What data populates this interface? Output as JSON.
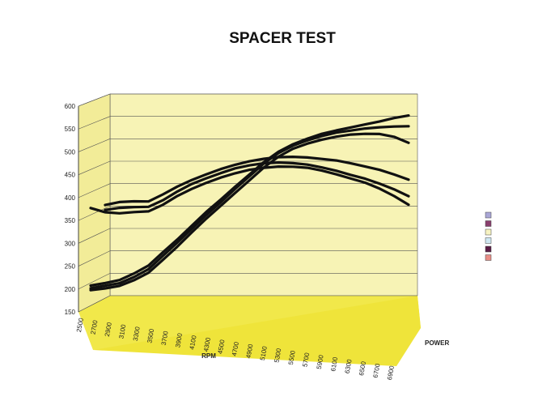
{
  "chart_data": {
    "type": "line",
    "title": "SPACER TEST",
    "xlabel": "RPM",
    "zlabel": "POWER",
    "ylim": [
      150,
      600
    ],
    "yticks": [
      "150",
      "200",
      "250",
      "300",
      "350",
      "400",
      "450",
      "500",
      "550",
      "600"
    ],
    "categories": [
      "2500",
      "2700",
      "2900",
      "3100",
      "3300",
      "3500",
      "3700",
      "3900",
      "4100",
      "4300",
      "4500",
      "4700",
      "4900",
      "5100",
      "5300",
      "5500",
      "5700",
      "5900",
      "6100",
      "6300",
      "6500",
      "6700",
      "6900"
    ],
    "grid": true,
    "legend_position": "right",
    "series": [
      {
        "color": "#111111",
        "values": [
          187,
          192,
          198,
          212,
          229,
          258,
          286,
          316,
          346,
          373,
          401,
          428,
          455,
          477,
          493,
          505,
          515,
          522,
          528,
          534,
          540,
          547,
          552
        ]
      },
      {
        "color": "#111111",
        "values": [
          181,
          186,
          191,
          204,
          221,
          250,
          279,
          309,
          339,
          367,
          396,
          424,
          452,
          474,
          490,
          501,
          510,
          517,
          521,
          525,
          527,
          528,
          528
        ]
      },
      {
        "color": "#111111",
        "values": [
          177,
          180,
          185,
          197,
          213,
          241,
          270,
          301,
          331,
          359,
          387,
          415,
          443,
          466,
          483,
          494,
          502,
          508,
          512,
          513,
          512,
          505,
          491
        ]
      },
      {
        "color": "#111111",
        "values": [
          null,
          366,
          372,
          373,
          372,
          387,
          404,
          418,
          430,
          441,
          450,
          457,
          462,
          465,
          465,
          463,
          459,
          455,
          448,
          440,
          432,
          421,
          409
        ]
      },
      {
        "color": "#111111",
        "values": [
          null,
          355,
          359,
          360,
          360,
          374,
          393,
          409,
          421,
          432,
          442,
          448,
          452,
          453,
          451,
          447,
          440,
          432,
          422,
          413,
          401,
          388,
          372
        ]
      },
      {
        "color": "#111111",
        "values": [
          360,
          350,
          347,
          349,
          350,
          364,
          383,
          398,
          411,
          422,
          431,
          438,
          442,
          444,
          443,
          440,
          433,
          424,
          414,
          404,
          390,
          373,
          353
        ]
      }
    ],
    "legend_swatches": [
      "#a9a6d6",
      "#8a3f6e",
      "#f7f3c2",
      "#cfe8f2",
      "#5a1d46",
      "#e98d86"
    ]
  }
}
